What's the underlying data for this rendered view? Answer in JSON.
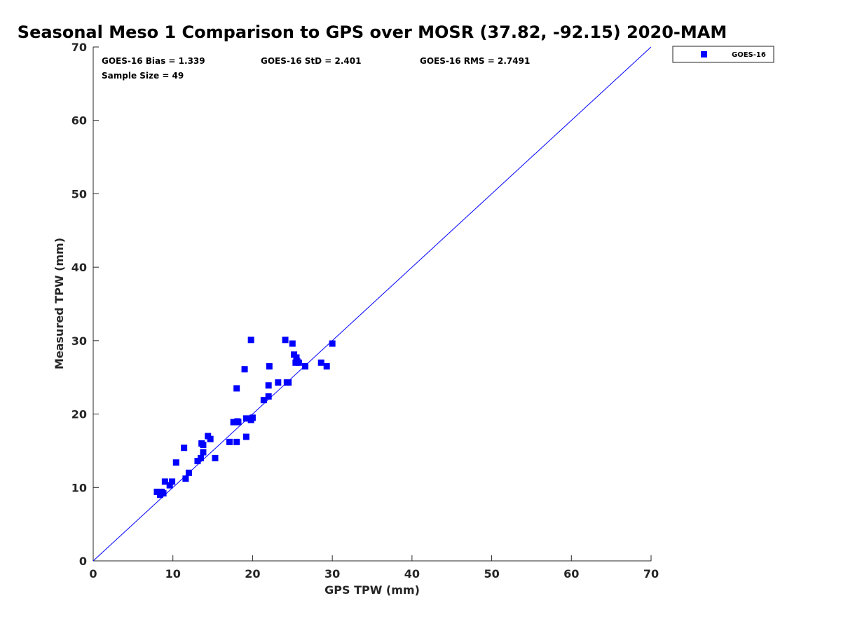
{
  "chart_data": {
    "type": "scatter",
    "title": "Seasonal Meso 1 Comparison to GPS over MOSR (37.82, -92.15) 2020-MAM",
    "xlabel": "GPS TPW (mm)",
    "ylabel": "Measured TPW (mm)",
    "xlim": [
      0,
      70
    ],
    "ylim": [
      0,
      70
    ],
    "xticks": [
      0,
      10,
      20,
      30,
      40,
      50,
      60,
      70
    ],
    "yticks": [
      0,
      10,
      20,
      30,
      40,
      50,
      60,
      70
    ],
    "grid": false,
    "legend_position": "top-right outside",
    "stats": {
      "bias": "GOES-16 Bias = 1.339",
      "std": "GOES-16 StD = 2.401",
      "rms": "GOES-16 RMS = 2.7491",
      "sample": "Sample Size = 49"
    },
    "reference_line": {
      "x": [
        0,
        70
      ],
      "y": [
        0,
        70
      ],
      "color": "#0000ff"
    },
    "series": [
      {
        "name": "GOES-16",
        "color": "#0000ff",
        "marker": "square",
        "points": [
          [
            8.0,
            9.4
          ],
          [
            8.4,
            9.0
          ],
          [
            8.6,
            9.4
          ],
          [
            8.8,
            9.2
          ],
          [
            9.0,
            10.8
          ],
          [
            9.6,
            10.3
          ],
          [
            9.9,
            10.8
          ],
          [
            10.4,
            13.4
          ],
          [
            11.4,
            15.4
          ],
          [
            11.6,
            11.2
          ],
          [
            12.0,
            12.0
          ],
          [
            13.1,
            13.6
          ],
          [
            13.5,
            14.0
          ],
          [
            13.6,
            16.0
          ],
          [
            13.8,
            15.8
          ],
          [
            13.8,
            14.8
          ],
          [
            14.4,
            17.0
          ],
          [
            14.7,
            16.6
          ],
          [
            15.3,
            14.0
          ],
          [
            17.1,
            16.2
          ],
          [
            17.6,
            18.9
          ],
          [
            18.0,
            16.2
          ],
          [
            18.0,
            23.5
          ],
          [
            18.1,
            19.0
          ],
          [
            18.2,
            18.9
          ],
          [
            19.0,
            26.1
          ],
          [
            19.2,
            19.4
          ],
          [
            19.2,
            16.9
          ],
          [
            19.8,
            19.2
          ],
          [
            19.8,
            30.1
          ],
          [
            20.0,
            19.5
          ],
          [
            21.4,
            21.9
          ],
          [
            22.0,
            22.4
          ],
          [
            22.0,
            23.9
          ],
          [
            22.1,
            26.5
          ],
          [
            23.2,
            24.3
          ],
          [
            24.1,
            30.1
          ],
          [
            24.3,
            24.3
          ],
          [
            24.5,
            24.3
          ],
          [
            25.0,
            29.6
          ],
          [
            25.2,
            28.1
          ],
          [
            25.4,
            27.0
          ],
          [
            25.5,
            27.7
          ],
          [
            25.6,
            27.2
          ],
          [
            25.8,
            27.0
          ],
          [
            26.6,
            26.5
          ],
          [
            28.6,
            27.0
          ],
          [
            29.3,
            26.5
          ],
          [
            30.0,
            29.6
          ]
        ]
      }
    ]
  }
}
